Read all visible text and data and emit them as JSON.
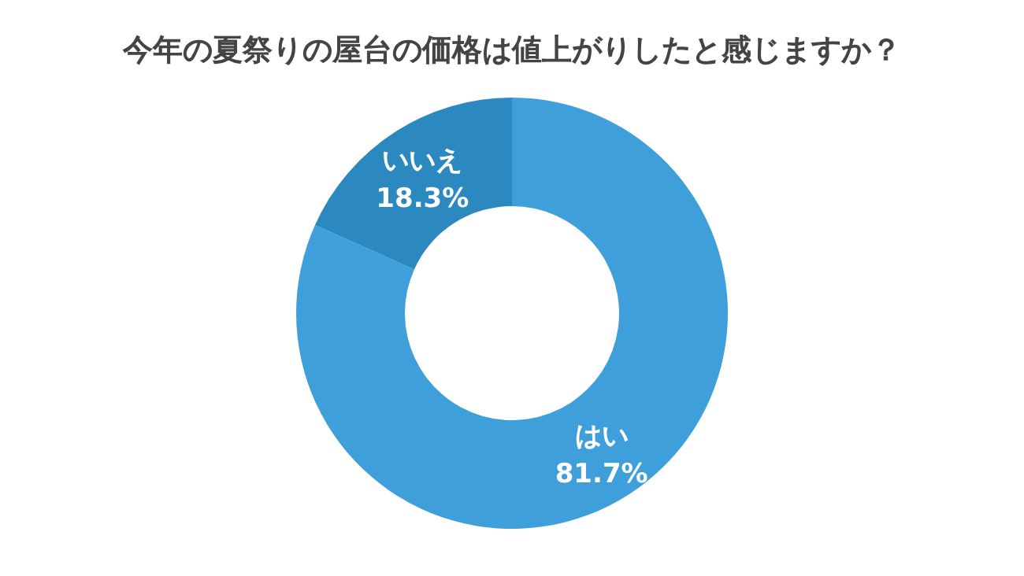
{
  "chart_data": {
    "type": "donut",
    "title": "今年の夏祭りの屋台の価格は値上がりしたと感じますか？",
    "categories": [
      "はい",
      "いいえ"
    ],
    "values": [
      81.7,
      18.3
    ],
    "colors": [
      "#3e9fdb",
      "#2b89c0"
    ],
    "value_labels": [
      "81.7%",
      "18.3%"
    ]
  }
}
